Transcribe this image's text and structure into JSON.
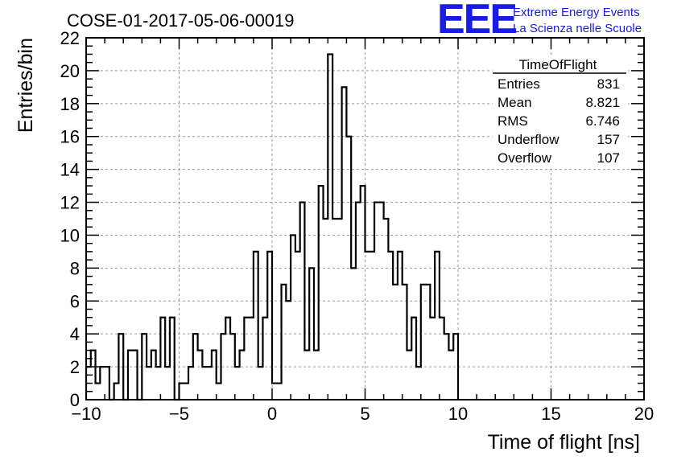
{
  "chart_data": {
    "type": "histogram",
    "title": "COSE-01-2017-05-06-00019",
    "xlabel": "Time of flight [ns]",
    "ylabel": "Entries/bin",
    "xlim": [
      -10,
      20
    ],
    "ylim": [
      0,
      22
    ],
    "bin_width": 0.25,
    "x_ticks": [
      -10,
      -5,
      0,
      5,
      10,
      15,
      20
    ],
    "y_ticks": [
      0,
      2,
      4,
      6,
      8,
      10,
      12,
      14,
      16,
      18,
      20,
      22
    ],
    "grid": true,
    "values": [
      2,
      3,
      1,
      2,
      2,
      0,
      1,
      4,
      0,
      3,
      3,
      0,
      4,
      2,
      3,
      2,
      5,
      2,
      5,
      0,
      1,
      1,
      2,
      4,
      3,
      2,
      2,
      3,
      1,
      4,
      5,
      4,
      2,
      3,
      5,
      5,
      9,
      2,
      5,
      9,
      1,
      1,
      7,
      6,
      10,
      9,
      12,
      3,
      8,
      3,
      13,
      11,
      21,
      11,
      11,
      19,
      16,
      8,
      12,
      13,
      9,
      9,
      12,
      12,
      11,
      9,
      7,
      9,
      7,
      3,
      5,
      2,
      7,
      7,
      5,
      9,
      5,
      4,
      3,
      4
    ],
    "stats": {
      "title": "TimeOfFlight",
      "rows": [
        {
          "label": "Entries",
          "value": "831"
        },
        {
          "label": "Mean",
          "value": "8.821"
        },
        {
          "label": "RMS",
          "value": "6.746"
        },
        {
          "label": "Underflow",
          "value": "157"
        },
        {
          "label": "Overflow",
          "value": "107"
        }
      ]
    }
  },
  "logo": {
    "mark": "EEE",
    "line1": "Extreme Energy Events",
    "line2": "La Scienza nelle Scuole"
  },
  "colors": {
    "line": "#000000",
    "grid": "#9a9a9a",
    "logo": "#1a1ae6"
  }
}
